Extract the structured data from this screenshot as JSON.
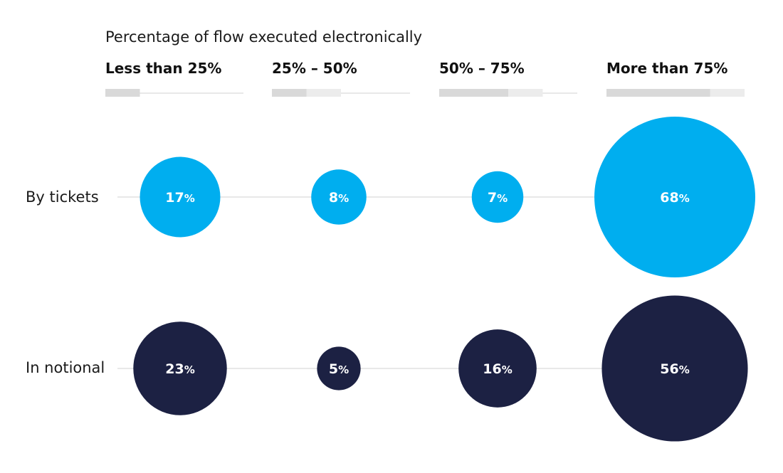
{
  "chart_data": {
    "type": "bubble",
    "title": "Percentage of flow executed electronically",
    "categories": [
      "Less than 25%",
      "25% – 50%",
      "50% – 75%",
      "More than 75%"
    ],
    "category_ranges": [
      [
        0,
        25
      ],
      [
        25,
        50
      ],
      [
        50,
        75
      ],
      [
        75,
        100
      ]
    ],
    "series": [
      {
        "name": "By tickets",
        "values": [
          17,
          8,
          7,
          68
        ],
        "labels": [
          "17%",
          "8%",
          "7%",
          "68%"
        ],
        "color": "#00aeef"
      },
      {
        "name": "In notional",
        "values": [
          23,
          5,
          16,
          56
        ],
        "labels": [
          "23%",
          "5%",
          "16%",
          "56%"
        ],
        "color": "#1c2143"
      }
    ],
    "indicator_colors": {
      "dark": "#d9d9d9",
      "light": "#ececec",
      "line": "#e0e0e0"
    }
  }
}
